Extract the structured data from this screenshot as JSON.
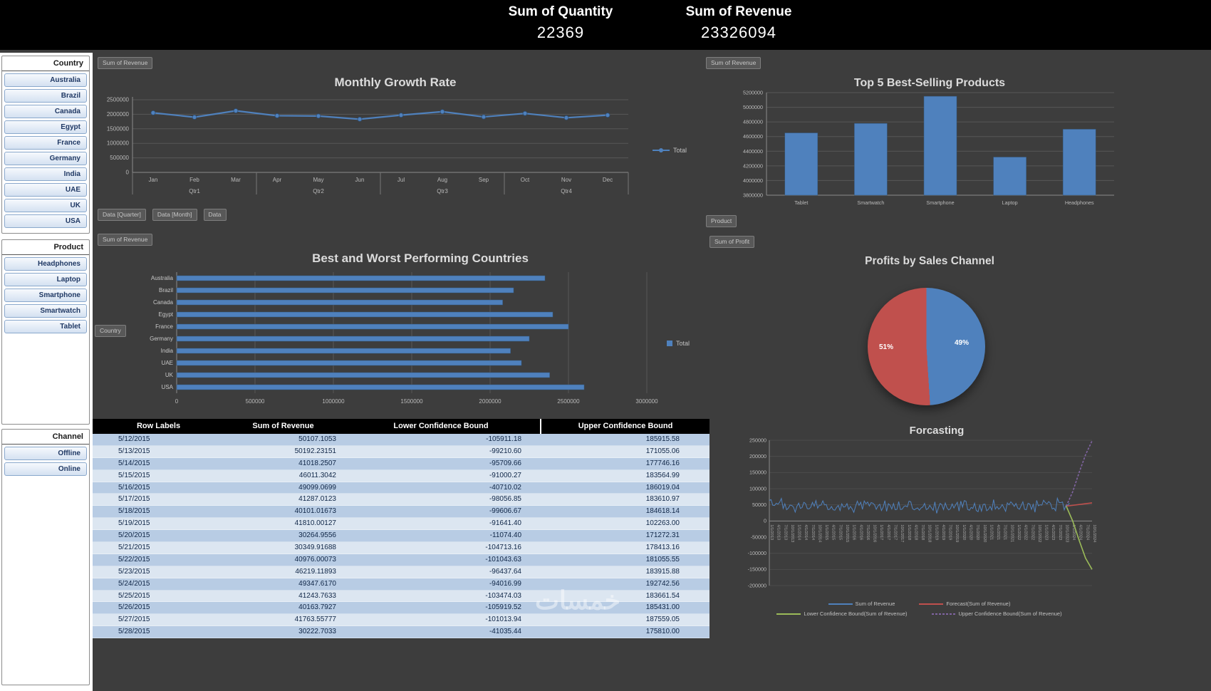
{
  "header": {
    "kpis": [
      {
        "label": "Sum of Quantity",
        "value": "22369"
      },
      {
        "label": "Sum of Revenue",
        "value": "23326094"
      }
    ]
  },
  "slicers": [
    {
      "title": "Country",
      "items": [
        "Australia",
        "Brazil",
        "Canada",
        "Egypt",
        "France",
        "Germany",
        "India",
        "UAE",
        "UK",
        "USA"
      ]
    },
    {
      "title": "Product",
      "items": [
        "Headphones",
        "Laptop",
        "Smartphone",
        "Smartwatch",
        "Tablet"
      ]
    },
    {
      "title": "Channel",
      "items": [
        "Offline",
        "Online"
      ]
    }
  ],
  "pivot_buttons": {
    "monthly_field": "Sum of Revenue",
    "axis_fields": [
      "Data [Quarter]",
      "Data [Month]",
      "Data"
    ],
    "countries_field": "Sum of Revenue",
    "country_axis": "Country",
    "top5_field": "Sum of Revenue",
    "top5_axis": "Product",
    "profit_field": "Sum of Profit"
  },
  "colors": {
    "accent_blue": "#4f81bd",
    "accent_red": "#c0504d",
    "accent_green": "#9bbb59",
    "accent_purple": "#8064a2",
    "table_band_dark": "#b8cce4",
    "table_band_light": "#dce6f1"
  },
  "chart_data": [
    {
      "id": "monthly_growth",
      "type": "line",
      "title": "Monthly Growth Rate",
      "categories": [
        "Jan",
        "Feb",
        "Mar",
        "Apr",
        "May",
        "Jun",
        "Jul",
        "Aug",
        "Sep",
        "Oct",
        "Nov",
        "Dec"
      ],
      "group_labels": [
        "Qtr1",
        "Qtr2",
        "Qtr3",
        "Qtr4"
      ],
      "series": [
        {
          "name": "Total",
          "color": "#4f81bd",
          "values": [
            2050000,
            1900000,
            2120000,
            1950000,
            1940000,
            1830000,
            1970000,
            2090000,
            1910000,
            2030000,
            1880000,
            1970000
          ]
        }
      ],
      "ylim": [
        0,
        2500000
      ],
      "yticks": [
        0,
        500000,
        1000000,
        1500000,
        2000000,
        2500000
      ],
      "legend": [
        "Total"
      ],
      "legend_position": "right"
    },
    {
      "id": "top5_products",
      "type": "bar",
      "title": "Top 5 Best-Selling Products",
      "categories": [
        "Tablet",
        "Smartwatch",
        "Smartphone",
        "Laptop",
        "Headphones"
      ],
      "values": [
        4650000,
        4780000,
        5150000,
        4320000,
        4700000
      ],
      "ylim": [
        3800000,
        5200000
      ],
      "yticks": [
        3800000,
        4000000,
        4200000,
        4400000,
        4600000,
        4800000,
        5000000,
        5200000
      ],
      "bar_color": "#4f81bd"
    },
    {
      "id": "countries",
      "type": "bar",
      "orientation": "horizontal",
      "title": "Best and Worst Performing Countries",
      "categories": [
        "Australia",
        "Brazil",
        "Canada",
        "Egypt",
        "France",
        "Germany",
        "India",
        "UAE",
        "UK",
        "USA"
      ],
      "series": [
        {
          "name": "Total",
          "color": "#4f81bd",
          "values": [
            2350000,
            2150000,
            2080000,
            2400000,
            2500000,
            2250000,
            2130000,
            2200000,
            2380000,
            2600000
          ]
        }
      ],
      "xlim": [
        0,
        3000000
      ],
      "xticks": [
        0,
        500000,
        1000000,
        1500000,
        2000000,
        2500000,
        3000000
      ],
      "legend": [
        "Total"
      ],
      "legend_position": "right"
    },
    {
      "id": "profit_pie",
      "type": "pie",
      "title": "Profits by Sales Channel",
      "slices": [
        {
          "label": "49%",
          "value": 49,
          "color": "#4f81bd"
        },
        {
          "label": "51%",
          "value": 51,
          "color": "#c0504d"
        }
      ]
    },
    {
      "id": "forecasting",
      "type": "line",
      "title": "Forcasting",
      "ylim": [
        -200000,
        250000
      ],
      "yticks": [
        -200000,
        -150000,
        -100000,
        -50000,
        0,
        50000,
        100000,
        150000,
        200000,
        250000
      ],
      "x_labels": [
        "1/1/2013",
        "4/1/2013",
        "7/1/2013",
        "10/1/2013",
        "1/1/2014",
        "4/1/2014",
        "7/1/2014",
        "10/1/2014",
        "1/1/2015",
        "4/1/2015",
        "7/1/2015",
        "10/1/2015",
        "1/1/2016",
        "4/1/2016",
        "7/1/2016",
        "10/1/2016",
        "1/1/2017",
        "4/1/2017",
        "7/1/2017",
        "10/1/2017",
        "1/1/2018",
        "4/1/2018",
        "7/1/2018",
        "10/1/2018",
        "1/1/2019",
        "4/1/2019",
        "7/1/2019",
        "10/1/2019",
        "1/1/2020",
        "4/1/2020",
        "7/1/2020",
        "10/1/2020",
        "1/1/2021",
        "4/1/2021",
        "7/1/2021",
        "10/1/2021",
        "1/1/2022",
        "4/1/2022",
        "7/1/2022",
        "10/1/2022",
        "1/1/2023",
        "4/1/2023",
        "7/1/2023",
        "10/1/2023",
        "1/1/2024",
        "4/1/2024",
        "7/1/2024",
        "10/1/2024"
      ],
      "history": {
        "name": "Sum of Revenue",
        "color": "#4f81bd",
        "mean": 46000,
        "amplitude": 26000,
        "points": 175,
        "end_frac": 0.93
      },
      "forecast_lines": [
        {
          "name": "Forecast(Sum of Revenue)",
          "color": "#c0504d",
          "dash": false,
          "points": [
            [
              0.92,
              46000
            ],
            [
              1.0,
              56000
            ]
          ]
        },
        {
          "name": "Upper Confidence Bound(Sum of Revenue)",
          "color": "#8064a2",
          "dash": true,
          "points": [
            [
              0.92,
              46000
            ],
            [
              0.94,
              90000
            ],
            [
              0.96,
              150000
            ],
            [
              0.98,
              205000
            ],
            [
              1.0,
              248000
            ]
          ]
        },
        {
          "name": "Lower Confidence Bound(Sum of Revenue)",
          "color": "#9bbb59",
          "dash": false,
          "points": [
            [
              0.92,
              46000
            ],
            [
              0.94,
              0
            ],
            [
              0.96,
              -60000
            ],
            [
              0.98,
              -115000
            ],
            [
              1.0,
              -150000
            ]
          ]
        }
      ],
      "legend_rows": [
        [
          {
            "name": "Sum of Revenue",
            "color": "#4f81bd",
            "dash": false
          },
          {
            "name": "Forecast(Sum of Revenue)",
            "color": "#c0504d",
            "dash": false
          }
        ],
        [
          {
            "name": "Lower Confidence Bound(Sum of Revenue)",
            "color": "#9bbb59",
            "dash": false
          },
          {
            "name": "Upper Confidence Bound(Sum of Revenue)",
            "color": "#8064a2",
            "dash": true
          }
        ]
      ]
    }
  ],
  "table": {
    "headers": [
      "Row Labels",
      "Sum of Revenue",
      "Lower Confidence Bound",
      "Upper Confidence Bound"
    ],
    "rows": [
      [
        "5/12/2015",
        "50107.1053",
        "-105911.18",
        "185915.58"
      ],
      [
        "5/13/2015",
        "50192.23151",
        "-99210.60",
        "171055.06"
      ],
      [
        "5/14/2015",
        "41018.2507",
        "-95709.66",
        "177746.16"
      ],
      [
        "5/15/2015",
        "46011.3042",
        "-91000.27",
        "183564.99"
      ],
      [
        "5/16/2015",
        "49099.0699",
        "-40710.02",
        "186019.04"
      ],
      [
        "5/17/2015",
        "41287.0123",
        "-98056.85",
        "183610.97"
      ],
      [
        "5/18/2015",
        "40101.01673",
        "-99606.67",
        "184618.14"
      ],
      [
        "5/19/2015",
        "41810.00127",
        "-91641.40",
        "102263.00"
      ],
      [
        "5/20/2015",
        "30264.9556",
        "-11074.40",
        "171272.31"
      ],
      [
        "5/21/2015",
        "30349.91688",
        "-104713.16",
        "178413.16"
      ],
      [
        "5/22/2015",
        "40976.00073",
        "-101043.63",
        "181055.55"
      ],
      [
        "5/23/2015",
        "46219.11893",
        "-96437.64",
        "183915.88"
      ],
      [
        "5/24/2015",
        "49347.6170",
        "-94016.99",
        "192742.56"
      ],
      [
        "5/25/2015",
        "41243.7633",
        "-103474.03",
        "183661.54"
      ],
      [
        "5/26/2015",
        "40163.7927",
        "-105919.52",
        "185431.00"
      ],
      [
        "5/27/2015",
        "41763.55777",
        "-101013.94",
        "187559.05"
      ],
      [
        "5/28/2015",
        "30222.7033",
        "-41035.44",
        "175810.00"
      ]
    ]
  },
  "watermark": "خمسات"
}
